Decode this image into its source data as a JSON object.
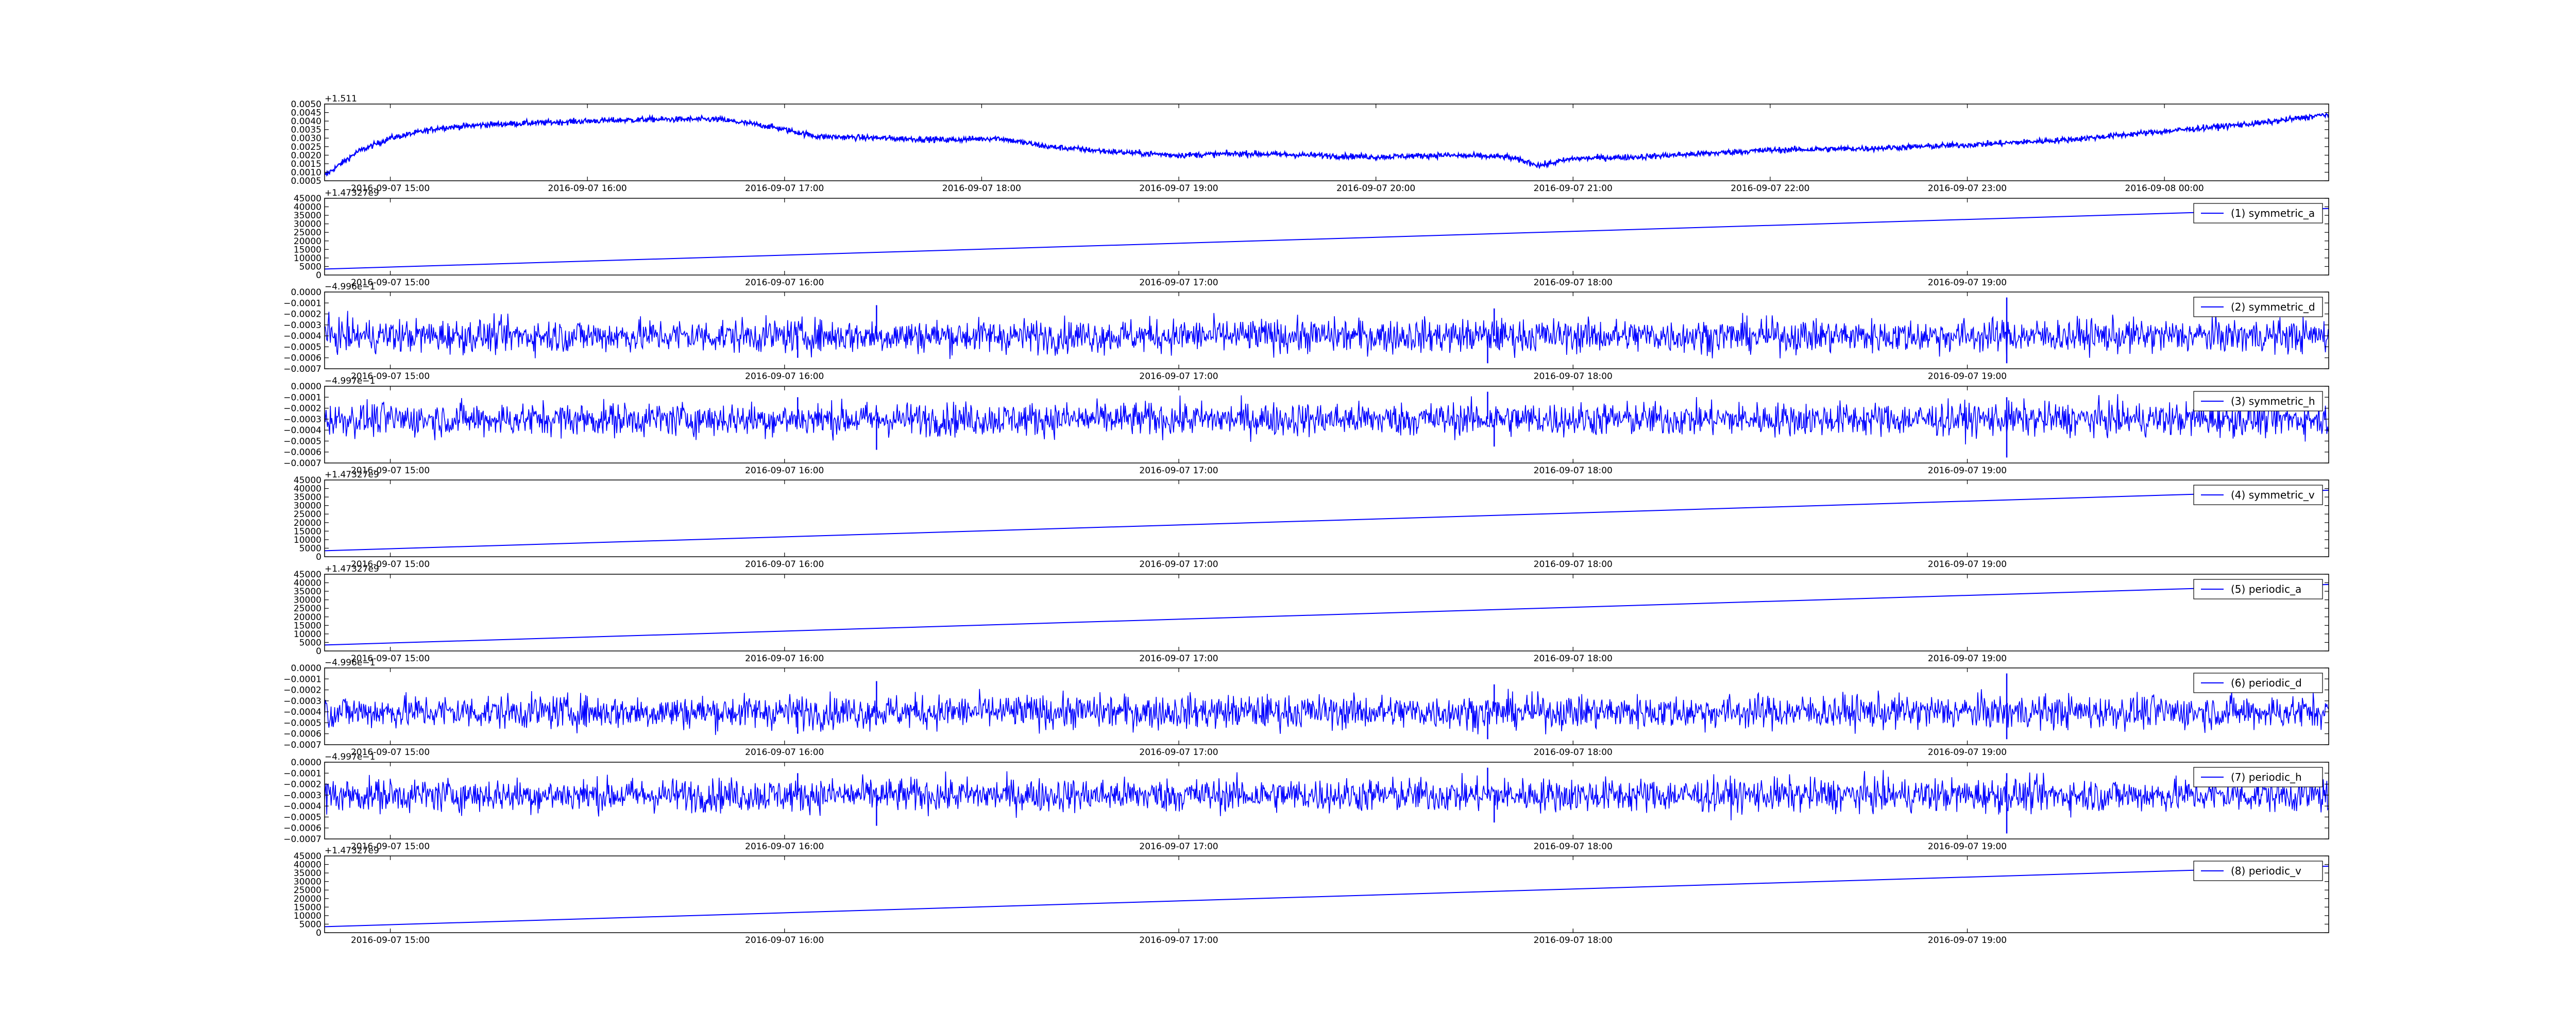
{
  "colors": {
    "series": "#0000ff",
    "axes": "#000000",
    "background": "#ffffff"
  },
  "chart_data": [
    {
      "type": "line",
      "offset_label": "+1.511",
      "ylim": [
        0.0005,
        0.005
      ],
      "y_ticks": [
        "0.0005",
        "0.0010",
        "0.0015",
        "0.0020",
        "0.0025",
        "0.0030",
        "0.0035",
        "0.0040",
        "0.0045",
        "0.0050"
      ],
      "x_ticks": [
        "2016-09-07 15:00",
        "2016-09-07 16:00",
        "2016-09-07 17:00",
        "2016-09-07 18:00",
        "2016-09-07 19:00",
        "2016-09-07 20:00",
        "2016-09-07 21:00",
        "2016-09-07 22:00",
        "2016-09-07 23:00",
        "2016-09-08 00:00"
      ],
      "x_range": [
        "2016-09-07 14:40",
        "2016-09-08 00:50"
      ],
      "series": [
        {
          "style": "noisy",
          "x": [
            "2016-09-07 14:40",
            "2016-09-07 14:45",
            "2016-09-07 14:50",
            "2016-09-07 15:00",
            "2016-09-07 15:15",
            "2016-09-07 15:30",
            "2016-09-07 15:45",
            "2016-09-07 16:00",
            "2016-09-07 16:20",
            "2016-09-07 16:40",
            "2016-09-07 16:55",
            "2016-09-07 17:10",
            "2016-09-07 17:30",
            "2016-09-07 17:50",
            "2016-09-07 18:05",
            "2016-09-07 18:20",
            "2016-09-07 18:40",
            "2016-09-07 19:00",
            "2016-09-07 19:20",
            "2016-09-07 19:40",
            "2016-09-07 20:00",
            "2016-09-07 20:20",
            "2016-09-07 20:40",
            "2016-09-07 20:50",
            "2016-09-07 21:00",
            "2016-09-07 21:20",
            "2016-09-07 21:40",
            "2016-09-07 22:00",
            "2016-09-07 22:30",
            "2016-09-07 23:00",
            "2016-09-07 23:30",
            "2016-09-08 00:00",
            "2016-09-08 00:30",
            "2016-09-08 00:50"
          ],
          "values": [
            0.0008,
            0.0015,
            0.0022,
            0.003,
            0.0036,
            0.0038,
            0.0039,
            0.004,
            0.0041,
            0.0041,
            0.0037,
            0.0031,
            0.003,
            0.0029,
            0.003,
            0.0025,
            0.0022,
            0.002,
            0.0021,
            0.002,
            0.0019,
            0.002,
            0.0019,
            0.0014,
            0.0018,
            0.0019,
            0.0021,
            0.0023,
            0.0024,
            0.0026,
            0.0029,
            0.0034,
            0.0039,
            0.0044
          ],
          "noise": 0.00012
        }
      ]
    },
    {
      "type": "line",
      "offset_label": "+1.47327e9",
      "ylim": [
        0,
        45000
      ],
      "y_ticks": [
        "0",
        "5000",
        "10000",
        "15000",
        "20000",
        "25000",
        "30000",
        "35000",
        "40000",
        "45000"
      ],
      "x_ticks": [
        "2016-09-07 15:00",
        "2016-09-07 16:00",
        "2016-09-07 17:00",
        "2016-09-07 18:00",
        "2016-09-07 19:00"
      ],
      "x_range": [
        "2016-09-07 14:50",
        "2016-09-07 19:55"
      ],
      "series": [
        {
          "name": "(1) symmetric_a",
          "style": "linear",
          "x": [
            "2016-09-07 14:50",
            "2016-09-07 19:55"
          ],
          "values": [
            3500,
            39000
          ]
        }
      ]
    },
    {
      "type": "line",
      "offset_label": "−4.996e−1",
      "ylim": [
        -0.0007,
        0.0
      ],
      "y_ticks": [
        "−0.0007",
        "−0.0006",
        "−0.0005",
        "−0.0004",
        "−0.0003",
        "−0.0002",
        "−0.0001",
        "0.0000"
      ],
      "x_ticks": [
        "2016-09-07 15:00",
        "2016-09-07 16:00",
        "2016-09-07 17:00",
        "2016-09-07 18:00",
        "2016-09-07 19:00"
      ],
      "x_range": [
        "2016-09-07 14:50",
        "2016-09-07 19:55"
      ],
      "series": [
        {
          "name": "(2) symmetric_d",
          "style": "noise",
          "mean": -0.0004,
          "noise": 0.00011,
          "spikes": [
            {
              "x": "2016-09-07 16:14",
              "value": -0.00012
            },
            {
              "x": "2016-09-07 16:02",
              "value": -0.0006
            },
            {
              "x": "2016-09-07 17:47",
              "value": -0.00065
            },
            {
              "x": "2016-09-07 17:48",
              "value": -0.00015
            },
            {
              "x": "2016-09-07 19:06",
              "value": -5e-05
            },
            {
              "x": "2016-09-07 19:06",
              "value": -0.00065
            }
          ]
        }
      ]
    },
    {
      "type": "line",
      "offset_label": "−4.997e−1",
      "ylim": [
        -0.0007,
        0.0
      ],
      "y_ticks": [
        "−0.0007",
        "−0.0006",
        "−0.0005",
        "−0.0004",
        "−0.0003",
        "−0.0002",
        "−0.0001",
        "0.0000"
      ],
      "x_ticks": [
        "2016-09-07 15:00",
        "2016-09-07 16:00",
        "2016-09-07 17:00",
        "2016-09-07 18:00",
        "2016-09-07 19:00"
      ],
      "x_range": [
        "2016-09-07 14:50",
        "2016-09-07 19:55"
      ],
      "series": [
        {
          "name": "(3) symmetric_h",
          "style": "noise",
          "mean": -0.0003,
          "noise": 0.00011,
          "spikes": [
            {
              "x": "2016-09-07 16:14",
              "value": -0.00058
            },
            {
              "x": "2016-09-07 16:02",
              "value": -0.0001
            },
            {
              "x": "2016-09-07 17:47",
              "value": -5e-05
            },
            {
              "x": "2016-09-07 17:48",
              "value": -0.00055
            },
            {
              "x": "2016-09-07 19:06",
              "value": -0.00065
            },
            {
              "x": "2016-09-07 19:06",
              "value": -0.0001
            }
          ]
        }
      ]
    },
    {
      "type": "line",
      "offset_label": "+1.47327e9",
      "ylim": [
        0,
        45000
      ],
      "y_ticks": [
        "0",
        "5000",
        "10000",
        "15000",
        "20000",
        "25000",
        "30000",
        "35000",
        "40000",
        "45000"
      ],
      "x_ticks": [
        "2016-09-07 15:00",
        "2016-09-07 16:00",
        "2016-09-07 17:00",
        "2016-09-07 18:00",
        "2016-09-07 19:00"
      ],
      "x_range": [
        "2016-09-07 14:50",
        "2016-09-07 19:55"
      ],
      "series": [
        {
          "name": "(4) symmetric_v",
          "style": "linear",
          "x": [
            "2016-09-07 14:50",
            "2016-09-07 19:55"
          ],
          "values": [
            3500,
            39000
          ]
        }
      ]
    },
    {
      "type": "line",
      "offset_label": "+1.47327e9",
      "ylim": [
        0,
        45000
      ],
      "y_ticks": [
        "0",
        "5000",
        "10000",
        "15000",
        "20000",
        "25000",
        "30000",
        "35000",
        "40000",
        "45000"
      ],
      "x_ticks": [
        "2016-09-07 15:00",
        "2016-09-07 16:00",
        "2016-09-07 17:00",
        "2016-09-07 18:00",
        "2016-09-07 19:00"
      ],
      "x_range": [
        "2016-09-07 14:50",
        "2016-09-07 19:55"
      ],
      "series": [
        {
          "name": "(5) periodic_a",
          "style": "linear",
          "x": [
            "2016-09-07 14:50",
            "2016-09-07 19:55"
          ],
          "values": [
            3500,
            39000
          ]
        }
      ]
    },
    {
      "type": "line",
      "offset_label": "−4.996e−1",
      "ylim": [
        -0.0007,
        0.0
      ],
      "y_ticks": [
        "−0.0007",
        "−0.0006",
        "−0.0005",
        "−0.0004",
        "−0.0003",
        "−0.0002",
        "−0.0001",
        "0.0000"
      ],
      "x_ticks": [
        "2016-09-07 15:00",
        "2016-09-07 16:00",
        "2016-09-07 17:00",
        "2016-09-07 18:00",
        "2016-09-07 19:00"
      ],
      "x_range": [
        "2016-09-07 14:50",
        "2016-09-07 19:55"
      ],
      "series": [
        {
          "name": "(6) periodic_d",
          "style": "noise",
          "mean": -0.0004,
          "noise": 0.00011,
          "spikes": [
            {
              "x": "2016-09-07 16:14",
              "value": -0.00012
            },
            {
              "x": "2016-09-07 16:02",
              "value": -0.0006
            },
            {
              "x": "2016-09-07 17:47",
              "value": -0.00065
            },
            {
              "x": "2016-09-07 17:48",
              "value": -0.00015
            },
            {
              "x": "2016-09-07 19:06",
              "value": -5e-05
            },
            {
              "x": "2016-09-07 19:06",
              "value": -0.00065
            }
          ]
        }
      ]
    },
    {
      "type": "line",
      "offset_label": "−4.997e−1",
      "ylim": [
        -0.0007,
        0.0
      ],
      "y_ticks": [
        "−0.0007",
        "−0.0006",
        "−0.0005",
        "−0.0004",
        "−0.0003",
        "−0.0002",
        "−0.0001",
        "0.0000"
      ],
      "x_ticks": [
        "2016-09-07 15:00",
        "2016-09-07 16:00",
        "2016-09-07 17:00",
        "2016-09-07 18:00",
        "2016-09-07 19:00"
      ],
      "x_range": [
        "2016-09-07 14:50",
        "2016-09-07 19:55"
      ],
      "series": [
        {
          "name": "(7) periodic_h",
          "style": "noise",
          "mean": -0.0003,
          "noise": 0.00011,
          "spikes": [
            {
              "x": "2016-09-07 16:14",
              "value": -0.00058
            },
            {
              "x": "2016-09-07 16:02",
              "value": -0.0001
            },
            {
              "x": "2016-09-07 17:47",
              "value": -5e-05
            },
            {
              "x": "2016-09-07 17:48",
              "value": -0.00055
            },
            {
              "x": "2016-09-07 19:06",
              "value": -0.00065
            },
            {
              "x": "2016-09-07 19:06",
              "value": -0.0001
            }
          ]
        }
      ]
    },
    {
      "type": "line",
      "offset_label": "+1.47327e9",
      "ylim": [
        0,
        45000
      ],
      "y_ticks": [
        "0",
        "5000",
        "10000",
        "15000",
        "20000",
        "25000",
        "30000",
        "35000",
        "40000",
        "45000"
      ],
      "x_ticks": [
        "2016-09-07 15:00",
        "2016-09-07 16:00",
        "2016-09-07 17:00",
        "2016-09-07 18:00",
        "2016-09-07 19:00"
      ],
      "x_range": [
        "2016-09-07 14:50",
        "2016-09-07 19:55"
      ],
      "series": [
        {
          "name": "(8) periodic_v",
          "style": "linear",
          "x": [
            "2016-09-07 14:50",
            "2016-09-07 19:55"
          ],
          "values": [
            3500,
            39000
          ]
        }
      ]
    }
  ]
}
